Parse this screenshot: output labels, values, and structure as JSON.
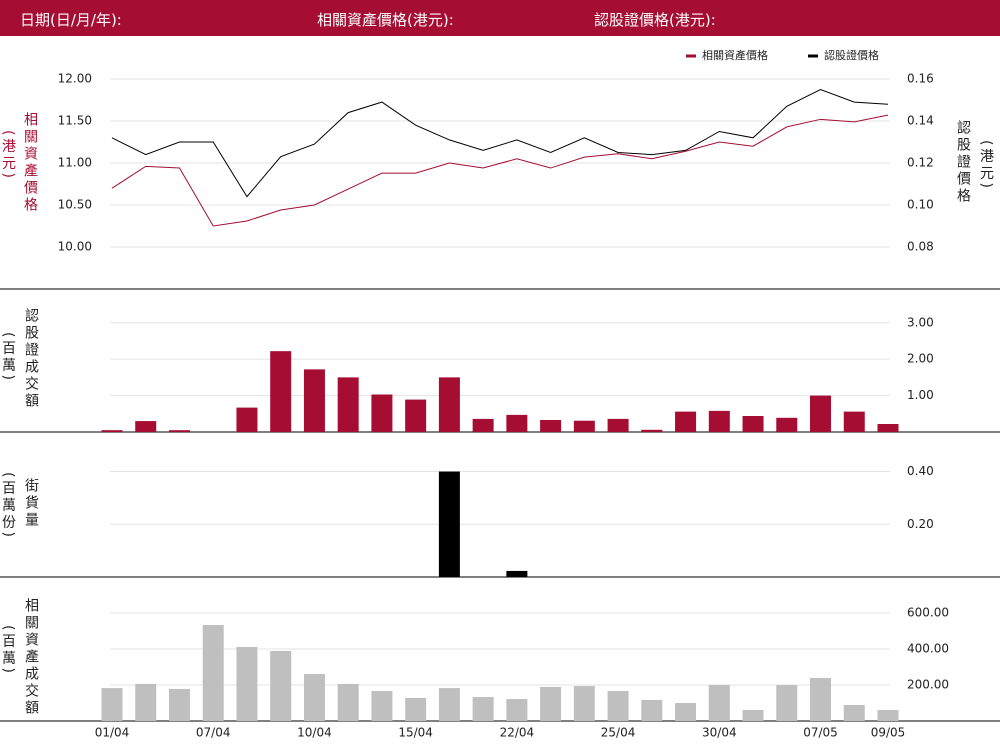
{
  "header": {
    "date_label": "日期(日/月/年):",
    "asset_price_label": "相關資產價格(港元):",
    "warrant_price_label": "認股證價格(港元):"
  },
  "chart_data": [
    {
      "type": "line",
      "ylabel": "相關資產價格",
      "ylabel_unit": "(港元)",
      "y2label": "認股證價格",
      "y2label_unit": "(港元)",
      "ylim": [
        9.5,
        12.5
      ],
      "yticks": [
        {
          "value": 10,
          "label": "10.00"
        },
        {
          "value": 10.5,
          "label": "10.50"
        },
        {
          "value": 11,
          "label": "11.00"
        },
        {
          "value": 11.5,
          "label": "11.50"
        },
        {
          "value": 12,
          "label": "12.00"
        }
      ],
      "y2lim": [
        0.06,
        0.18
      ],
      "y2ticks": [
        {
          "value": 0.08,
          "label": "0.08"
        },
        {
          "value": 0.1,
          "label": "0.10"
        },
        {
          "value": 0.12,
          "label": "0.12"
        },
        {
          "value": 0.14,
          "label": "0.14"
        },
        {
          "value": 0.16,
          "label": "0.16"
        }
      ],
      "grid": true,
      "series": [
        {
          "name": "相關資產價格",
          "color": "#a50d32",
          "values": [
            10.7,
            10.96,
            10.94,
            10.25,
            10.31,
            10.44,
            10.5,
            10.69,
            10.88,
            10.88,
            11.0,
            10.94,
            11.05,
            10.94,
            11.07,
            11.11,
            11.05,
            11.14,
            11.25,
            11.2,
            11.43,
            11.52,
            11.49,
            11.57
          ]
        },
        {
          "name": "認股證價格",
          "color": "#000000",
          "axis": "y2",
          "values": [
            0.132,
            0.124,
            0.13,
            0.13,
            0.104,
            0.123,
            0.129,
            0.144,
            0.149,
            0.138,
            0.131,
            0.126,
            0.131,
            0.125,
            0.132,
            0.125,
            0.124,
            0.126,
            0.135,
            0.132,
            0.147,
            0.155,
            0.149,
            0.148
          ]
        }
      ]
    },
    {
      "type": "bar",
      "ylabel": "認股證成交額",
      "ylabel_unit": "(百萬)",
      "color": "#a50d32",
      "grid": true,
      "ylim": [
        0,
        3.9
      ],
      "yticks": [
        {
          "value": 1,
          "label": "1.00"
        },
        {
          "value": 2,
          "label": "2.00"
        },
        {
          "value": 3,
          "label": "3.00"
        }
      ],
      "values": [
        0.05,
        0.3,
        0.05,
        0,
        0.67,
        2.22,
        1.72,
        1.5,
        1.03,
        0.89,
        1.5,
        0.36,
        0.47,
        0.33,
        0.31,
        0.36,
        0.06,
        0.56,
        0.58,
        0.44,
        0.39,
        1.0,
        0.56,
        0.22
      ]
    },
    {
      "type": "bar",
      "ylabel": "街貨量",
      "ylabel_unit": "(百萬份)",
      "color": "#000000",
      "grid": true,
      "ylim": [
        0,
        0.55
      ],
      "yticks": [
        {
          "value": 0.2,
          "label": "0.20"
        },
        {
          "value": 0.4,
          "label": "0.40"
        }
      ],
      "values": [
        0,
        0,
        0,
        0,
        0,
        0,
        0,
        0,
        0,
        0,
        0.4,
        0,
        0.023,
        0,
        0,
        0,
        0,
        0,
        0,
        0,
        0,
        0,
        0,
        0
      ]
    },
    {
      "type": "bar",
      "ylabel": "相關資產成交額",
      "ylabel_unit": "(百萬)",
      "color": "#bfbfbf",
      "grid": true,
      "ylim": [
        0,
        800
      ],
      "yticks": [
        {
          "value": 200,
          "label": "200.00"
        },
        {
          "value": 400,
          "label": "400.00"
        },
        {
          "value": 600,
          "label": "600.00"
        }
      ],
      "categories": [
        "01/04",
        null,
        null,
        "07/04",
        null,
        null,
        "10/04",
        null,
        null,
        "15/04",
        null,
        null,
        "22/04",
        null,
        null,
        "25/04",
        null,
        null,
        "30/04",
        null,
        null,
        "07/05",
        null,
        "09/05"
      ],
      "values": [
        183,
        206,
        178,
        533,
        411,
        389,
        261,
        206,
        167,
        128,
        183,
        133,
        122,
        189,
        194,
        167,
        117,
        100,
        200,
        61,
        200,
        239,
        89,
        61
      ]
    }
  ]
}
